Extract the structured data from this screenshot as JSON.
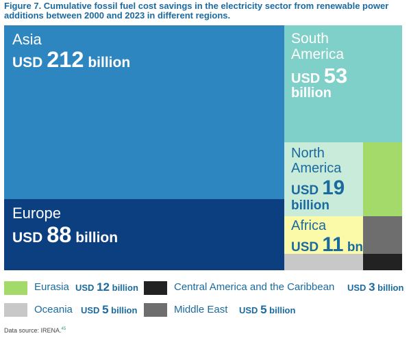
{
  "title": "Figure 7. Cumulative fossil fuel cost savings in the electricity sector from renewable power additions between 2000 and 2023 in different regions.",
  "source": "Data source: IRENA.",
  "source_ref": "45",
  "chart_data": {
    "type": "treemap",
    "title": "Cumulative fossil fuel cost savings in the electricity sector from renewable power additions between 2000 and 2023 in different regions",
    "unit": "USD billion",
    "regions": [
      {
        "name": "Asia",
        "value": 212,
        "prefix": "USD",
        "num": "212",
        "suffix": "billion",
        "color": "#2e86c1"
      },
      {
        "name": "Europe",
        "value": 88,
        "prefix": "USD",
        "num": "88",
        "suffix": "billion",
        "color": "#0b3f80"
      },
      {
        "name": "South America",
        "name_l1": "South",
        "name_l2": "America",
        "value": 53,
        "prefix": "USD",
        "num": "53",
        "suffix": "billion",
        "color": "#7fd0c8"
      },
      {
        "name": "North America",
        "name_l1": "North",
        "name_l2": "America",
        "value": 19,
        "prefix": "USD",
        "num": "19",
        "suffix": "billion",
        "color": "#c9ebd9"
      },
      {
        "name": "Africa",
        "value": 11,
        "prefix": "USD",
        "num": "11",
        "suffix": "bn",
        "color": "#fafaa8"
      },
      {
        "name": "Eurasia",
        "value": 12,
        "prefix": "USD",
        "num": "12",
        "suffix": "billion",
        "color": "#a4da6a"
      },
      {
        "name": "Central America and the Caribbean",
        "value": 3,
        "prefix": "USD",
        "num": "3",
        "suffix": "billion",
        "color": "#222222"
      },
      {
        "name": "Oceania",
        "value": 5,
        "prefix": "USD",
        "num": "5",
        "suffix": "billion",
        "color": "#c8c8c8"
      },
      {
        "name": "Middle East",
        "value": 5,
        "prefix": "USD",
        "num": "5",
        "suffix": "billion",
        "color": "#6e6e6e"
      }
    ]
  }
}
